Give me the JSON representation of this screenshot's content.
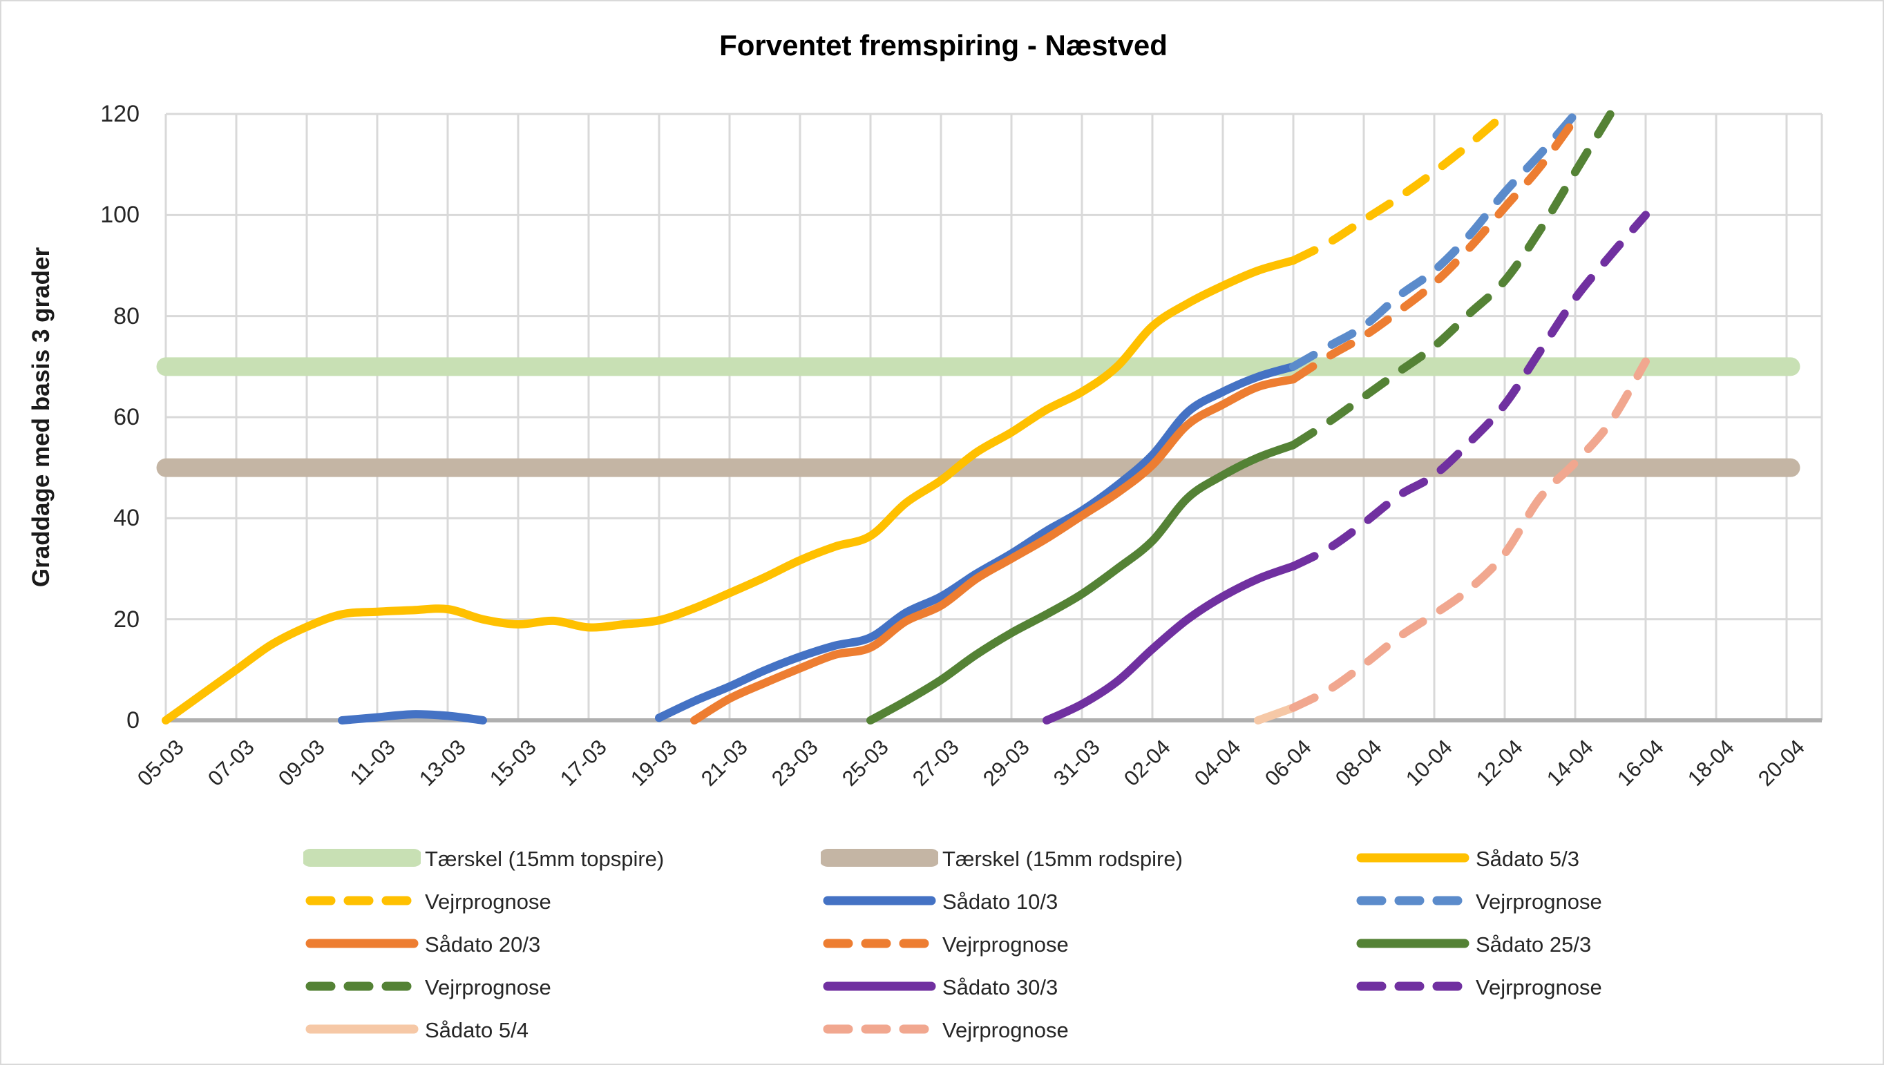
{
  "title": "Forventet fremspiring - Næstved",
  "y_axis": {
    "label": "Graddage med basis 3 grader",
    "ticks": [
      0,
      20,
      40,
      60,
      80,
      100,
      120
    ],
    "min": 0,
    "max": 120
  },
  "x_axis": {
    "tick_labels": [
      "05-03",
      "07-03",
      "09-03",
      "11-03",
      "13-03",
      "15-03",
      "17-03",
      "19-03",
      "21-03",
      "23-03",
      "25-03",
      "27-03",
      "29-03",
      "31-03",
      "02-04",
      "04-04",
      "06-04",
      "08-04",
      "10-04",
      "12-04",
      "14-04",
      "16-04",
      "18-04",
      "20-04"
    ]
  },
  "colors": {
    "yellow": "#FFC000",
    "blue": "#4472C4",
    "blue_forecast": "#5B8BCB",
    "orange": "#ED7D31",
    "green": "#548235",
    "purple": "#7030A0",
    "pink_solid": "#F6C8A6",
    "pink_forecast": "#F1A78F",
    "band_topspire": "#C8E0B4",
    "band_rodspire": "#C4B5A4",
    "grid": "#D9D9D9",
    "axis_line": "#AFAFAF",
    "text": "#262626"
  },
  "chart_data": {
    "type": "line",
    "title": "Forventet fremspiring - Næstved",
    "xlabel": "",
    "ylabel": "Graddage med basis 3 grader",
    "ylim": [
      0,
      120
    ],
    "grid": true,
    "legend_position": "bottom",
    "x_unit": "date dd-mm",
    "thresholds": [
      {
        "name": "Tærskel (15mm topspire)",
        "value": 70,
        "color": "#C8E0B4"
      },
      {
        "name": "Tærskel (15mm rodspire)",
        "value": 50,
        "color": "#C4B5A4"
      }
    ],
    "series": [
      {
        "name": "Sådato 5/3",
        "style": "solid",
        "color": "#FFC000",
        "points": [
          [
            "05-03",
            0
          ],
          [
            "06-03",
            5
          ],
          [
            "07-03",
            10
          ],
          [
            "08-03",
            15
          ],
          [
            "09-03",
            18.5
          ],
          [
            "10-03",
            21
          ],
          [
            "11-03",
            21.5
          ],
          [
            "12-03",
            21.8
          ],
          [
            "13-03",
            22
          ],
          [
            "14-03",
            20
          ],
          [
            "15-03",
            19
          ],
          [
            "16-03",
            19.7
          ],
          [
            "17-03",
            18.4
          ],
          [
            "18-03",
            19
          ],
          [
            "19-03",
            19.8
          ],
          [
            "20-03",
            22.2
          ],
          [
            "21-03",
            25.2
          ],
          [
            "22-03",
            28.3
          ],
          [
            "23-03",
            31.7
          ],
          [
            "24-03",
            34.4
          ],
          [
            "25-03",
            36.5
          ],
          [
            "26-03",
            43
          ],
          [
            "27-03",
            47.5
          ],
          [
            "28-03",
            53
          ],
          [
            "29-03",
            57
          ],
          [
            "30-03",
            61.5
          ],
          [
            "31-03",
            65
          ],
          [
            "01-04",
            70
          ],
          [
            "02-04",
            78
          ],
          [
            "03-04",
            82.5
          ],
          [
            "04-04",
            86
          ],
          [
            "05-04",
            89
          ],
          [
            "06-04",
            91
          ]
        ]
      },
      {
        "name": "Vejrprognose",
        "style": "dashed",
        "color": "#FFC000",
        "points": [
          [
            "06-04",
            91
          ],
          [
            "07-04",
            94.5
          ],
          [
            "08-04",
            99
          ],
          [
            "09-04",
            103.5
          ],
          [
            "10-04",
            108.5
          ],
          [
            "11-04",
            114
          ],
          [
            "12-04",
            120
          ]
        ]
      },
      {
        "name": "Sådato 10/3",
        "style": "solid",
        "color": "#4472C4",
        "points": [
          [
            "10-03",
            0
          ],
          [
            "11-03",
            0.6
          ],
          [
            "12-03",
            1.2
          ],
          [
            "13-03",
            0.9
          ],
          [
            "14-03",
            0
          ],
          [
            "15-03",
            null
          ],
          [
            "16-03",
            null
          ],
          [
            "17-03",
            null
          ],
          [
            "18-03",
            null
          ],
          [
            "19-03",
            0.5
          ],
          [
            "20-03",
            3.8
          ],
          [
            "21-03",
            6.7
          ],
          [
            "22-03",
            9.9
          ],
          [
            "23-03",
            12.6
          ],
          [
            "24-03",
            14.8
          ],
          [
            "25-03",
            16.4
          ],
          [
            "26-03",
            21.3
          ],
          [
            "27-03",
            24.5
          ],
          [
            "28-03",
            29
          ],
          [
            "29-03",
            33
          ],
          [
            "30-03",
            37.5
          ],
          [
            "31-03",
            41.5
          ],
          [
            "01-04",
            46.5
          ],
          [
            "02-04",
            52.5
          ],
          [
            "03-04",
            61
          ],
          [
            "04-04",
            65
          ],
          [
            "05-04",
            68
          ],
          [
            "06-04",
            70
          ]
        ]
      },
      {
        "name": "Vejrprognose",
        "style": "dashed",
        "color": "#5B8BCB",
        "points": [
          [
            "06-04",
            70
          ],
          [
            "07-04",
            74
          ],
          [
            "08-04",
            78
          ],
          [
            "09-04",
            84
          ],
          [
            "10-04",
            89
          ],
          [
            "11-04",
            96
          ],
          [
            "12-04",
            104.5
          ],
          [
            "13-04",
            112
          ],
          [
            "14-04",
            120
          ]
        ]
      },
      {
        "name": "Sådato 20/3",
        "style": "solid",
        "color": "#ED7D31",
        "points": [
          [
            "20-03",
            0
          ],
          [
            "21-03",
            4.3
          ],
          [
            "22-03",
            7.4
          ],
          [
            "23-03",
            10.3
          ],
          [
            "24-03",
            13
          ],
          [
            "25-03",
            14.4
          ],
          [
            "26-03",
            19.6
          ],
          [
            "27-03",
            22.7
          ],
          [
            "28-03",
            28
          ],
          [
            "29-03",
            32
          ],
          [
            "30-03",
            36
          ],
          [
            "31-03",
            40.5
          ],
          [
            "01-04",
            45
          ],
          [
            "02-04",
            50.5
          ],
          [
            "03-04",
            58.5
          ],
          [
            "04-04",
            62.5
          ],
          [
            "05-04",
            66
          ],
          [
            "06-04",
            67.5
          ]
        ]
      },
      {
        "name": "Vejrprognose",
        "style": "dashed",
        "color": "#ED7D31",
        "points": [
          [
            "06-04",
            67.5
          ],
          [
            "07-04",
            72
          ],
          [
            "08-04",
            76
          ],
          [
            "09-04",
            81
          ],
          [
            "10-04",
            86.5
          ],
          [
            "11-04",
            93.5
          ],
          [
            "12-04",
            101.5
          ],
          [
            "13-04",
            109.5
          ],
          [
            "14-04",
            119
          ]
        ]
      },
      {
        "name": "Sådato 25/3",
        "style": "solid",
        "color": "#548235",
        "points": [
          [
            "25-03",
            0
          ],
          [
            "26-03",
            3.8
          ],
          [
            "27-03",
            8
          ],
          [
            "28-03",
            13
          ],
          [
            "29-03",
            17.3
          ],
          [
            "30-03",
            21
          ],
          [
            "31-03",
            25
          ],
          [
            "01-04",
            30
          ],
          [
            "02-04",
            35.5
          ],
          [
            "03-04",
            44
          ],
          [
            "04-04",
            48.5
          ],
          [
            "05-04",
            52
          ],
          [
            "06-04",
            54.5
          ]
        ]
      },
      {
        "name": "Vejrprognose",
        "style": "dashed",
        "color": "#548235",
        "points": [
          [
            "06-04",
            54.5
          ],
          [
            "07-04",
            59
          ],
          [
            "08-04",
            64
          ],
          [
            "09-04",
            69
          ],
          [
            "10-04",
            74
          ],
          [
            "11-04",
            80.5
          ],
          [
            "12-04",
            87
          ],
          [
            "13-04",
            97
          ],
          [
            "14-04",
            108.5
          ],
          [
            "15-04",
            120
          ]
        ]
      },
      {
        "name": "Sådato 30/3",
        "style": "solid",
        "color": "#7030A0",
        "points": [
          [
            "30-03",
            0
          ],
          [
            "31-03",
            3.2
          ],
          [
            "01-04",
            7.7
          ],
          [
            "02-04",
            14.1
          ],
          [
            "03-04",
            20
          ],
          [
            "04-04",
            24.5
          ],
          [
            "05-04",
            28
          ],
          [
            "06-04",
            30.5
          ]
        ]
      },
      {
        "name": "Vejrprognose",
        "style": "dashed",
        "color": "#7030A0",
        "points": [
          [
            "06-04",
            30.5
          ],
          [
            "07-04",
            34
          ],
          [
            "08-04",
            39
          ],
          [
            "09-04",
            44.5
          ],
          [
            "10-04",
            48.5
          ],
          [
            "11-04",
            55
          ],
          [
            "12-04",
            62.5
          ],
          [
            "13-04",
            73
          ],
          [
            "14-04",
            83.5
          ],
          [
            "15-04",
            92
          ],
          [
            "16-04",
            100
          ]
        ]
      },
      {
        "name": "Sådato 5/4",
        "style": "solid",
        "color": "#F6C8A6",
        "points": [
          [
            "05-04",
            0
          ],
          [
            "06-04",
            2.5
          ]
        ]
      },
      {
        "name": "Vejrprognose",
        "style": "dashed",
        "color": "#F1A78F",
        "points": [
          [
            "06-04",
            2.5
          ],
          [
            "07-04",
            6
          ],
          [
            "08-04",
            11
          ],
          [
            "09-04",
            16.5
          ],
          [
            "10-04",
            21
          ],
          [
            "11-04",
            26
          ],
          [
            "12-04",
            33
          ],
          [
            "13-04",
            44
          ],
          [
            "14-04",
            51
          ],
          [
            "15-04",
            59
          ],
          [
            "16-04",
            71
          ]
        ]
      }
    ]
  },
  "legend": {
    "items": [
      {
        "label": "Tærskel (15mm topspire)",
        "swatch": "band",
        "color": "#C8E0B4"
      },
      {
        "label": "Tærskel (15mm rodspire)",
        "swatch": "band",
        "color": "#C4B5A4"
      },
      {
        "label": "Sådato 5/3",
        "swatch": "solid",
        "color": "#FFC000"
      },
      {
        "label": "Vejrprognose",
        "swatch": "dashed",
        "color": "#FFC000"
      },
      {
        "label": "Sådato 10/3",
        "swatch": "solid",
        "color": "#4472C4"
      },
      {
        "label": "Vejrprognose",
        "swatch": "dashed",
        "color": "#5B8BCB"
      },
      {
        "label": "Sådato 20/3",
        "swatch": "solid",
        "color": "#ED7D31"
      },
      {
        "label": "Vejrprognose",
        "swatch": "dashed",
        "color": "#ED7D31"
      },
      {
        "label": "Sådato 25/3",
        "swatch": "solid",
        "color": "#548235"
      },
      {
        "label": "Vejrprognose",
        "swatch": "dashed",
        "color": "#548235"
      },
      {
        "label": "Sådato 30/3",
        "swatch": "solid",
        "color": "#7030A0"
      },
      {
        "label": "Vejrprognose",
        "swatch": "dashed",
        "color": "#7030A0"
      },
      {
        "label": "Sådato 5/4",
        "swatch": "solid",
        "color": "#F6C8A6"
      },
      {
        "label": "Vejrprognose",
        "swatch": "dashed",
        "color": "#F1A78F"
      }
    ]
  }
}
